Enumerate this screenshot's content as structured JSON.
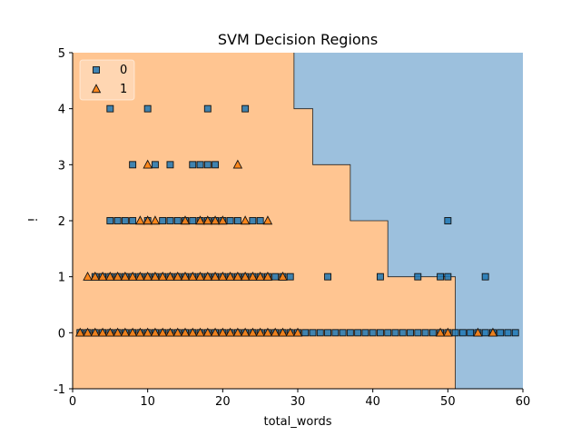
{
  "chart_data": {
    "type": "scatter",
    "title": "SVM Decision Regions",
    "xlabel": "total_words",
    "ylabel": "!",
    "xlim": [
      0,
      60
    ],
    "ylim": [
      -1,
      5
    ],
    "xticks": [
      "0",
      "10",
      "20",
      "30",
      "40",
      "50",
      "60"
    ],
    "yticks": [
      "-1",
      "0",
      "1",
      "2",
      "3",
      "4",
      "5"
    ],
    "legend_position": "top-left",
    "colors": {
      "class_0": "#1f77b4",
      "class_1": "#ff7f0e",
      "region_0": "#9cc0dd",
      "region_1": "#ffc591"
    },
    "decision_boundary": [
      [
        29.5,
        5
      ],
      [
        29.5,
        4
      ],
      [
        32,
        4
      ],
      [
        32,
        3
      ],
      [
        37,
        3
      ],
      [
        37,
        2
      ],
      [
        42,
        2
      ],
      [
        42,
        1
      ],
      [
        51,
        1
      ],
      [
        51,
        -1
      ]
    ],
    "series": [
      {
        "name": "0",
        "marker": "square",
        "points": [
          [
            5,
            4
          ],
          [
            10,
            4
          ],
          [
            18,
            4
          ],
          [
            23,
            4
          ],
          [
            8,
            3
          ],
          [
            11,
            3
          ],
          [
            13,
            3
          ],
          [
            16,
            3
          ],
          [
            17,
            3
          ],
          [
            18,
            3
          ],
          [
            19,
            3
          ],
          [
            5,
            2
          ],
          [
            6,
            2
          ],
          [
            7,
            2
          ],
          [
            8,
            2
          ],
          [
            10,
            2
          ],
          [
            12,
            2
          ],
          [
            13,
            2
          ],
          [
            14,
            2
          ],
          [
            15,
            2
          ],
          [
            16,
            2
          ],
          [
            17,
            2
          ],
          [
            18,
            2
          ],
          [
            19,
            2
          ],
          [
            20,
            2
          ],
          [
            21,
            2
          ],
          [
            22,
            2
          ],
          [
            24,
            2
          ],
          [
            25,
            2
          ],
          [
            50,
            2
          ],
          [
            3,
            1
          ],
          [
            4,
            1
          ],
          [
            5,
            1
          ],
          [
            6,
            1
          ],
          [
            7,
            1
          ],
          [
            8,
            1
          ],
          [
            9,
            1
          ],
          [
            10,
            1
          ],
          [
            11,
            1
          ],
          [
            12,
            1
          ],
          [
            13,
            1
          ],
          [
            14,
            1
          ],
          [
            15,
            1
          ],
          [
            16,
            1
          ],
          [
            17,
            1
          ],
          [
            18,
            1
          ],
          [
            19,
            1
          ],
          [
            20,
            1
          ],
          [
            21,
            1
          ],
          [
            22,
            1
          ],
          [
            23,
            1
          ],
          [
            24,
            1
          ],
          [
            25,
            1
          ],
          [
            26,
            1
          ],
          [
            27,
            1
          ],
          [
            28,
            1
          ],
          [
            29,
            1
          ],
          [
            34,
            1
          ],
          [
            41,
            1
          ],
          [
            46,
            1
          ],
          [
            49,
            1
          ],
          [
            50,
            1
          ],
          [
            55,
            1
          ],
          [
            1,
            0
          ],
          [
            2,
            0
          ],
          [
            3,
            0
          ],
          [
            4,
            0
          ],
          [
            5,
            0
          ],
          [
            6,
            0
          ],
          [
            7,
            0
          ],
          [
            8,
            0
          ],
          [
            9,
            0
          ],
          [
            10,
            0
          ],
          [
            11,
            0
          ],
          [
            12,
            0
          ],
          [
            13,
            0
          ],
          [
            14,
            0
          ],
          [
            15,
            0
          ],
          [
            16,
            0
          ],
          [
            17,
            0
          ],
          [
            18,
            0
          ],
          [
            19,
            0
          ],
          [
            20,
            0
          ],
          [
            21,
            0
          ],
          [
            22,
            0
          ],
          [
            23,
            0
          ],
          [
            24,
            0
          ],
          [
            25,
            0
          ],
          [
            26,
            0
          ],
          [
            27,
            0
          ],
          [
            28,
            0
          ],
          [
            29,
            0
          ],
          [
            30,
            0
          ],
          [
            31,
            0
          ],
          [
            32,
            0
          ],
          [
            33,
            0
          ],
          [
            34,
            0
          ],
          [
            35,
            0
          ],
          [
            36,
            0
          ],
          [
            37,
            0
          ],
          [
            38,
            0
          ],
          [
            39,
            0
          ],
          [
            40,
            0
          ],
          [
            41,
            0
          ],
          [
            42,
            0
          ],
          [
            43,
            0
          ],
          [
            44,
            0
          ],
          [
            45,
            0
          ],
          [
            46,
            0
          ],
          [
            47,
            0
          ],
          [
            48,
            0
          ],
          [
            49,
            0
          ],
          [
            50,
            0
          ],
          [
            51,
            0
          ],
          [
            52,
            0
          ],
          [
            53,
            0
          ],
          [
            54,
            0
          ],
          [
            55,
            0
          ],
          [
            56,
            0
          ],
          [
            57,
            0
          ],
          [
            58,
            0
          ],
          [
            59,
            0
          ]
        ]
      },
      {
        "name": "1",
        "marker": "triangle",
        "points": [
          [
            10,
            3
          ],
          [
            22,
            3
          ],
          [
            9,
            2
          ],
          [
            10,
            2
          ],
          [
            11,
            2
          ],
          [
            15,
            2
          ],
          [
            17,
            2
          ],
          [
            18,
            2
          ],
          [
            19,
            2
          ],
          [
            20,
            2
          ],
          [
            23,
            2
          ],
          [
            26,
            2
          ],
          [
            2,
            1
          ],
          [
            3,
            1
          ],
          [
            4,
            1
          ],
          [
            5,
            1
          ],
          [
            6,
            1
          ],
          [
            7,
            1
          ],
          [
            8,
            1
          ],
          [
            9,
            1
          ],
          [
            10,
            1
          ],
          [
            11,
            1
          ],
          [
            12,
            1
          ],
          [
            13,
            1
          ],
          [
            14,
            1
          ],
          [
            15,
            1
          ],
          [
            16,
            1
          ],
          [
            17,
            1
          ],
          [
            18,
            1
          ],
          [
            19,
            1
          ],
          [
            20,
            1
          ],
          [
            21,
            1
          ],
          [
            22,
            1
          ],
          [
            23,
            1
          ],
          [
            24,
            1
          ],
          [
            25,
            1
          ],
          [
            26,
            1
          ],
          [
            28,
            1
          ],
          [
            1,
            0
          ],
          [
            2,
            0
          ],
          [
            3,
            0
          ],
          [
            4,
            0
          ],
          [
            5,
            0
          ],
          [
            6,
            0
          ],
          [
            7,
            0
          ],
          [
            8,
            0
          ],
          [
            9,
            0
          ],
          [
            10,
            0
          ],
          [
            11,
            0
          ],
          [
            12,
            0
          ],
          [
            13,
            0
          ],
          [
            14,
            0
          ],
          [
            15,
            0
          ],
          [
            16,
            0
          ],
          [
            17,
            0
          ],
          [
            18,
            0
          ],
          [
            19,
            0
          ],
          [
            20,
            0
          ],
          [
            21,
            0
          ],
          [
            22,
            0
          ],
          [
            23,
            0
          ],
          [
            24,
            0
          ],
          [
            25,
            0
          ],
          [
            26,
            0
          ],
          [
            27,
            0
          ],
          [
            28,
            0
          ],
          [
            29,
            0
          ],
          [
            30,
            0
          ],
          [
            49,
            0
          ],
          [
            50,
            0
          ],
          [
            54,
            0
          ],
          [
            56,
            0
          ]
        ]
      }
    ]
  }
}
